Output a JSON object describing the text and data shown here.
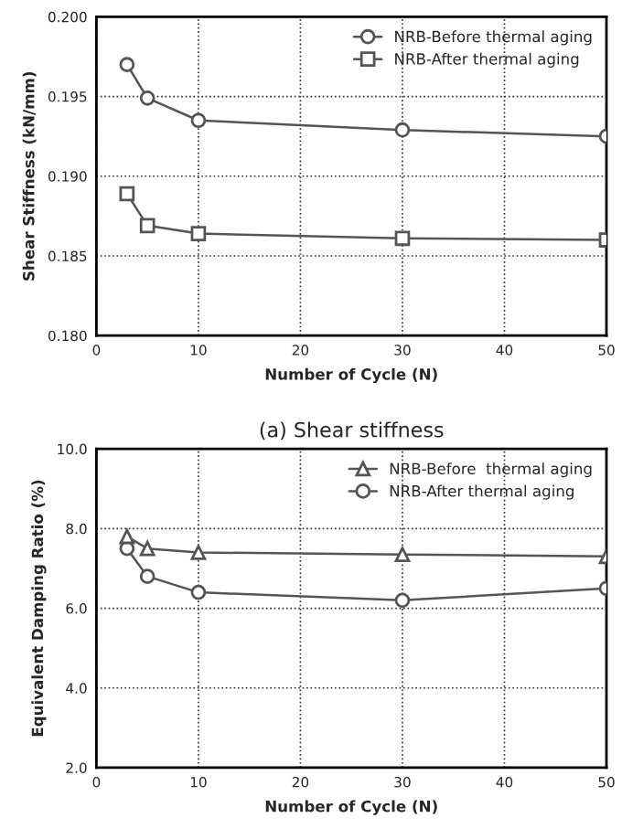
{
  "chart_data": [
    {
      "type": "line",
      "xlabel": "Number of Cycle (N)",
      "ylabel": "Shear Stiffness (kN/mm)",
      "annotations": [
        "(a) Shear stiffness"
      ],
      "x": [
        3,
        5,
        10,
        30,
        50
      ],
      "series": [
        {
          "name": "NRB-Before thermal aging",
          "color": "#555555",
          "marker": "circle",
          "values": [
            0.197,
            0.1949,
            0.1935,
            0.1929,
            0.1925
          ]
        },
        {
          "name": "NRB-After thermal aging",
          "color": "#555555",
          "marker": "square",
          "values": [
            0.1889,
            0.1869,
            0.1864,
            0.1861,
            0.186
          ]
        }
      ],
      "xlim": [
        0,
        50
      ],
      "xticks": [
        0,
        10,
        20,
        30,
        40,
        50
      ],
      "ylim": [
        0.18,
        0.2
      ],
      "yticks": [
        {
          "value": 0.18,
          "label": "0.180"
        },
        {
          "value": 0.185,
          "label": "0.185"
        },
        {
          "value": 0.19,
          "label": "0.190"
        },
        {
          "value": 0.195,
          "label": "0.195"
        },
        {
          "value": 0.2,
          "label": "0.200"
        }
      ],
      "grid": true,
      "legend": "top right",
      "line_style": "solid"
    },
    {
      "type": "line",
      "xlabel": "Number of Cycle (N)",
      "ylabel": "Equivalent Damping Ratio (%)",
      "x": [
        3,
        5,
        10,
        30,
        50
      ],
      "series": [
        {
          "name": "NRB-Before  thermal aging",
          "color": "#555555",
          "marker": "triangle",
          "values": [
            7.8,
            7.5,
            7.4,
            7.35,
            7.3
          ]
        },
        {
          "name": "NRB-After thermal aging",
          "color": "#555555",
          "marker": "circle",
          "values": [
            7.5,
            6.8,
            6.4,
            6.2,
            6.5
          ]
        }
      ],
      "xlim": [
        0,
        50
      ],
      "xticks": [
        0,
        10,
        20,
        30,
        40,
        50
      ],
      "ylim": [
        2,
        10
      ],
      "yticks": [
        {
          "value": 2,
          "label": "2.0"
        },
        {
          "value": 4,
          "label": "4.0"
        },
        {
          "value": 6,
          "label": "6.0"
        },
        {
          "value": 8,
          "label": "8.0"
        },
        {
          "value": 10,
          "label": "10.0"
        }
      ],
      "grid": true,
      "legend": "top right",
      "line_style": "solid"
    }
  ]
}
